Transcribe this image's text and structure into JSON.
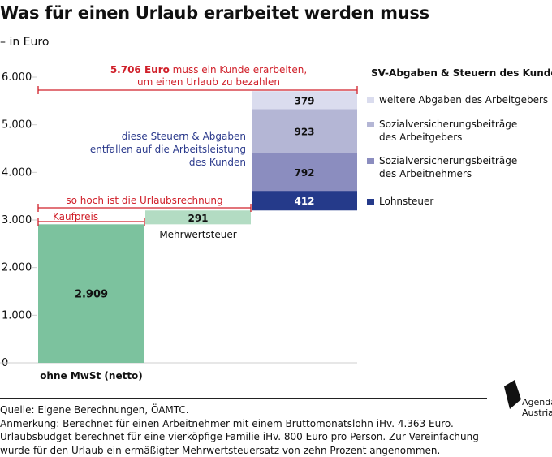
{
  "title": "Was für einen Urlaub erarbeitet werden muss",
  "subtitle": "– in Euro",
  "chart_data": {
    "type": "bar",
    "subtype": "waterfall-stacked",
    "y_ticks": [
      "6.000",
      "5.000",
      "4.000",
      "3.000",
      "2.000",
      "1.000",
      "0"
    ],
    "ylim": [
      0,
      6000
    ],
    "grid": false,
    "bars": [
      {
        "label": "ohne MwSt (netto)",
        "base": 0,
        "value": 2909,
        "value_label": "2.909",
        "color": "#7cc29e"
      },
      {
        "label": "Mehrwertsteuer",
        "base": 2909,
        "value": 291,
        "value_label": "291",
        "color": "#b3dcc3"
      },
      {
        "label": "",
        "stack": [
          {
            "name": "Lohnsteuer",
            "value": 412,
            "value_label": "412",
            "color": "#253a8a"
          },
          {
            "name": "Sozialversicherungsbeiträge des Arbeitnehmers",
            "value": 792,
            "value_label": "792",
            "color": "#8b8dbf"
          },
          {
            "name": "Sozialversicherungsbeiträge des Arbeitgebers",
            "value": 923,
            "value_label": "923",
            "color": "#b4b6d5"
          },
          {
            "name": "weitere Abgaben des Arbeitgebers",
            "value": 379,
            "value_label": "379",
            "color": "#dadcee"
          }
        ]
      }
    ],
    "annotations": {
      "top_line1_bold": "5.706 Euro",
      "top_line1_rest": " muss ein Kunde erarbeiten,",
      "top_line2": "um einen Urlaub zu bezahlen",
      "middle": "so hoch ist die Urlaubsrechnung",
      "kaufpreis": "Kaufpreis",
      "blue_text": [
        "diese Steuern & Abgaben",
        "entfallen auf die Arbeitsleistung",
        "des Kunden"
      ]
    },
    "legend_title": "SV-Abgaben & Steuern des Kunden:",
    "legend": [
      {
        "lines": [
          "weitere Abgaben des Arbeitgebers"
        ],
        "color": "#dadcee"
      },
      {
        "lines": [
          "Sozialversicherungsbeiträge",
          "des Arbeitgebers"
        ],
        "color": "#b4b6d5"
      },
      {
        "lines": [
          "Sozialversicherungsbeiträge",
          "des Arbeitnehmers"
        ],
        "color": "#8b8dbf"
      },
      {
        "lines": [
          "Lohnsteuer"
        ],
        "color": "#253a8a"
      }
    ],
    "colors": {
      "red": "#d0202a",
      "blue": "#2b3a8c"
    }
  },
  "footer": {
    "source": "Quelle: Eigene Berechnungen, ÖAMTC.",
    "notes": [
      "Anmerkung: Berechnet für einen Arbeitnehmer mit einem Bruttomonatslohn iHv. 4.363 Euro.",
      "Urlaubsbudget berechnet für eine vierköpfige Familie iHv. 800 Euro pro Person. Zur Vereinfachung",
      "wurde für den Urlaub ein ermäßigter Mehrwertsteuersatz von zehn Prozent angenommen."
    ]
  },
  "logo": {
    "line1": "Agenda",
    "line2": "Austria"
  }
}
